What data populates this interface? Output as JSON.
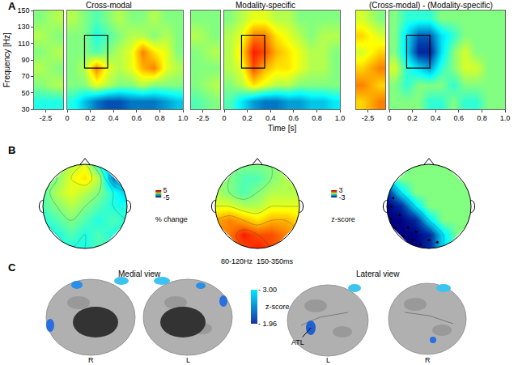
{
  "panel_labels": [
    "A",
    "B",
    "C"
  ],
  "caption": "80-120Hz  150-350ms",
  "chart_data": [
    {
      "type": "heatmap",
      "title": "Cross-modal",
      "ylabel": "Frequency [Hz]",
      "y": [
        40,
        60,
        80,
        100,
        120,
        140
      ],
      "ylim": [
        30,
        150
      ],
      "yticks": [
        30,
        50,
        70,
        90,
        110,
        130,
        150
      ],
      "zlim": [
        -5,
        5
      ],
      "roi": {
        "x": [
          0.15,
          0.35
        ],
        "y": [
          80,
          120
        ]
      },
      "segments": [
        {
          "x": [
            -2.55,
            -2.4
          ],
          "xlim": [
            -2.6,
            -2.35
          ],
          "xticks": [
            -2.5
          ],
          "z": [
            [
              -1,
              -1
            ],
            [
              0,
              0.5
            ],
            [
              0.5,
              0
            ],
            [
              0,
              0.5
            ],
            [
              0.5,
              0
            ],
            [
              0,
              0.5
            ]
          ]
        },
        {
          "x": [
            0.05,
            0.15,
            0.25,
            0.35,
            0.45,
            0.55,
            0.65,
            0.75,
            0.85,
            0.95
          ],
          "xlim": [
            0,
            1
          ],
          "xticks": [
            0,
            0.2,
            0.4,
            0.6,
            0.8,
            {
              "value": 1,
              "label": "1.0"
            }
          ],
          "z": [
            [
              -1,
              -2,
              -3,
              -3.5,
              -3.5,
              -3,
              -3,
              -3,
              -2.5,
              -2
            ],
            [
              0,
              0,
              1,
              0.5,
              0,
              0,
              0.5,
              0,
              0,
              0
            ],
            [
              0,
              0.5,
              2.5,
              1,
              0.5,
              1,
              2,
              2.5,
              1,
              0.5
            ],
            [
              0,
              0,
              -0.5,
              0,
              0.5,
              1,
              2.5,
              1.5,
              1,
              0
            ],
            [
              0,
              0,
              -1,
              -0.5,
              0,
              0.5,
              0.5,
              0,
              0.5,
              0
            ],
            [
              0.5,
              0,
              -0.5,
              0,
              0.5,
              0,
              0,
              0.5,
              0,
              0
            ]
          ]
        }
      ]
    },
    {
      "type": "heatmap",
      "title": "Modality-specific",
      "xlabel": "Time [s]",
      "tick_labels": "x",
      "y": [
        40,
        60,
        80,
        100,
        120,
        140
      ],
      "ylim": [
        30,
        150
      ],
      "yticks": [
        30,
        50,
        70,
        90,
        110,
        130,
        150
      ],
      "zlim": [
        -5,
        5
      ],
      "roi": {
        "x": [
          0.15,
          0.35
        ],
        "y": [
          80,
          120
        ]
      },
      "segments": [
        {
          "x": [
            -2.55,
            -2.4
          ],
          "xlim": [
            -2.6,
            -2.35
          ],
          "xticks": [
            -2.5
          ],
          "z": [
            [
              -0.5,
              0
            ],
            [
              0,
              0.5
            ],
            [
              0,
              0
            ],
            [
              0,
              0.5
            ],
            [
              0.5,
              0
            ],
            [
              0,
              0
            ]
          ]
        },
        {
          "x": [
            0.05,
            0.15,
            0.25,
            0.35,
            0.45,
            0.55,
            0.65,
            0.75,
            0.85,
            0.95
          ],
          "xlim": [
            0,
            1
          ],
          "xticks": [
            0,
            0.2,
            0.4,
            0.6,
            0.8,
            {
              "value": 1,
              "label": "1.0"
            }
          ],
          "z": [
            [
              -0.5,
              -1.5,
              -2.5,
              -3,
              -3,
              -2.5,
              -2.5,
              -2,
              -2,
              -1.5
            ],
            [
              0,
              0.5,
              1.5,
              1,
              0.5,
              0.5,
              0,
              0,
              0,
              0
            ],
            [
              0.5,
              1,
              3,
              2,
              1.5,
              1.5,
              1,
              0.5,
              0.5,
              0
            ],
            [
              0.5,
              1.5,
              3.5,
              3,
              2,
              1.5,
              1,
              0.5,
              0.5,
              0
            ],
            [
              0.5,
              1,
              2.5,
              2.5,
              1.5,
              1,
              0.5,
              0,
              0.5,
              0.5
            ],
            [
              0,
              0.5,
              1,
              1,
              0.5,
              0.5,
              0,
              0,
              0,
              0
            ]
          ]
        }
      ]
    },
    {
      "type": "heatmap",
      "title": "(Cross-modal) - (Modality-specific)",
      "tick_labels": "x",
      "y": [
        40,
        60,
        80,
        100,
        120,
        140
      ],
      "ylim": [
        30,
        150
      ],
      "yticks": [
        30,
        50,
        70,
        90,
        110,
        130,
        150
      ],
      "zlim": [
        -3,
        3
      ],
      "roi": {
        "x": [
          0.15,
          0.35
        ],
        "y": [
          80,
          120
        ]
      },
      "segments": [
        {
          "x": [
            -2.55,
            -2.4
          ],
          "xlim": [
            -2.6,
            -2.35
          ],
          "xticks": [
            -2.5
          ],
          "z": [
            [
              1,
              1.5
            ],
            [
              1.5,
              1
            ],
            [
              1,
              1.5
            ],
            [
              0.5,
              1
            ],
            [
              1,
              0.5
            ],
            [
              0.5,
              0
            ]
          ]
        },
        {
          "x": [
            0.05,
            0.15,
            0.25,
            0.35,
            0.45,
            0.55,
            0.65,
            0.75,
            0.85,
            0.95
          ],
          "xlim": [
            0,
            1
          ],
          "xticks": [
            0,
            0.2,
            0.4,
            0.6,
            0.8,
            {
              "value": 1,
              "label": "1.0"
            }
          ],
          "z": [
            [
              0,
              0,
              0,
              -0.5,
              -0.5,
              0,
              -0.5,
              -0.5,
              0,
              0
            ],
            [
              0,
              -0.5,
              0,
              0,
              0,
              -0.5,
              0,
              0,
              0,
              0
            ],
            [
              0.5,
              -0.5,
              -1,
              -1.5,
              -0.5,
              0,
              0.5,
              0.5,
              0,
              0
            ],
            [
              0,
              -1,
              -2.5,
              -2.5,
              -1,
              0,
              0.5,
              0,
              0,
              0
            ],
            [
              0,
              -1,
              -2,
              -2,
              -1,
              -0.5,
              0,
              0,
              0,
              0
            ],
            [
              0,
              -0.5,
              -0.5,
              -0.5,
              0,
              0,
              0,
              0,
              0,
              0
            ]
          ]
        }
      ]
    },
    {
      "type": "topography",
      "x": [
        -1,
        -0.667,
        -0.333,
        0,
        0.333,
        0.667,
        1
      ],
      "y": [
        -1,
        -0.667,
        -0.333,
        0,
        0.333,
        0.667,
        1
      ],
      "zlim": [
        -5,
        5
      ],
      "colorbar": {
        "title": "% change",
        "ticks": [
          -5,
          5
        ]
      },
      "z": [
        [
          null,
          null,
          -1,
          -1,
          -0.5,
          null,
          null
        ],
        [
          null,
          -1,
          -0.5,
          -1,
          -0.5,
          -1,
          null
        ],
        [
          -1,
          -0.5,
          0,
          -0.5,
          -1,
          -0.5,
          -1
        ],
        [
          -0.5,
          0,
          0.5,
          0,
          -0.5,
          -1,
          -1
        ],
        [
          -0.5,
          0.5,
          1,
          0.5,
          0,
          -1,
          -2
        ],
        [
          null,
          0,
          1,
          1.5,
          0.5,
          -3,
          null
        ],
        [
          null,
          null,
          0.5,
          1,
          -1,
          null,
          null
        ]
      ]
    },
    {
      "type": "topography",
      "x": [
        -1,
        -0.667,
        -0.333,
        0,
        0.333,
        0.667,
        1
      ],
      "y": [
        -1,
        -0.667,
        -0.333,
        0,
        0.333,
        0.667,
        1
      ],
      "zlim": [
        -5,
        5
      ],
      "z": [
        [
          null,
          null,
          3,
          3.5,
          3,
          null,
          null
        ],
        [
          null,
          2.5,
          3.5,
          3,
          3,
          2.5,
          null
        ],
        [
          2,
          2.5,
          2,
          1.5,
          2,
          2,
          1.5
        ],
        [
          1,
          1,
          0.5,
          0.5,
          1,
          1,
          1
        ],
        [
          0.5,
          0,
          -0.5,
          0,
          0.5,
          0.5,
          0.5
        ],
        [
          null,
          0,
          -0.5,
          -0.5,
          0,
          0.5,
          null
        ],
        [
          null,
          null,
          0,
          0,
          0,
          null,
          null
        ]
      ]
    },
    {
      "type": "topography",
      "x": [
        -1,
        -0.667,
        -0.333,
        0,
        0.333,
        0.667,
        1
      ],
      "y": [
        -1,
        -0.667,
        -0.333,
        0,
        0.333,
        0.667,
        1
      ],
      "zlim": [
        -3,
        3
      ],
      "colorbar": {
        "title": "z-score",
        "ticks": [
          -3,
          3
        ]
      },
      "z": [
        [
          null,
          null,
          -3,
          -2.5,
          -1,
          null,
          null
        ],
        [
          null,
          -3,
          -3,
          -2.5,
          -1,
          0,
          null
        ],
        [
          -3,
          -3,
          -2.5,
          -1,
          0,
          0,
          0
        ],
        [
          -3,
          -2.5,
          -1,
          0,
          0,
          0,
          0
        ],
        [
          -2.5,
          -1,
          0,
          0,
          0,
          0,
          0
        ],
        [
          null,
          0,
          0,
          0,
          0,
          0,
          null
        ],
        [
          null,
          null,
          0,
          0,
          0,
          null,
          null
        ]
      ],
      "points": [
        [
          -0.9,
          -0.3
        ],
        [
          -0.8,
          -0.5
        ],
        [
          -0.6,
          -0.7
        ],
        [
          -0.4,
          -0.8
        ],
        [
          -0.2,
          -0.9
        ],
        [
          -0.7,
          -0.2
        ],
        [
          -0.5,
          -0.5
        ],
        [
          -0.3,
          -0.6
        ],
        [
          0,
          -0.8
        ],
        [
          0.2,
          -0.85
        ],
        [
          -0.9,
          0
        ],
        [
          -0.85,
          0.2
        ]
      ]
    },
    {
      "type": "surface_map",
      "views": [
        {
          "title": "Medial view",
          "hemispheres": [
            "R",
            "L"
          ]
        },
        {
          "title": "Lateral view",
          "hemispheres": [
            "L",
            "R"
          ]
        }
      ],
      "annotation": "ATL",
      "colorbar": {
        "title": "z-score",
        "zlim": [
          -3.0,
          -1.96
        ],
        "ticks": [
          {
            "value": -3,
            "label": "- 3.00"
          },
          {
            "value": -1.96,
            "label": "- 1.96"
          }
        ]
      }
    }
  ]
}
